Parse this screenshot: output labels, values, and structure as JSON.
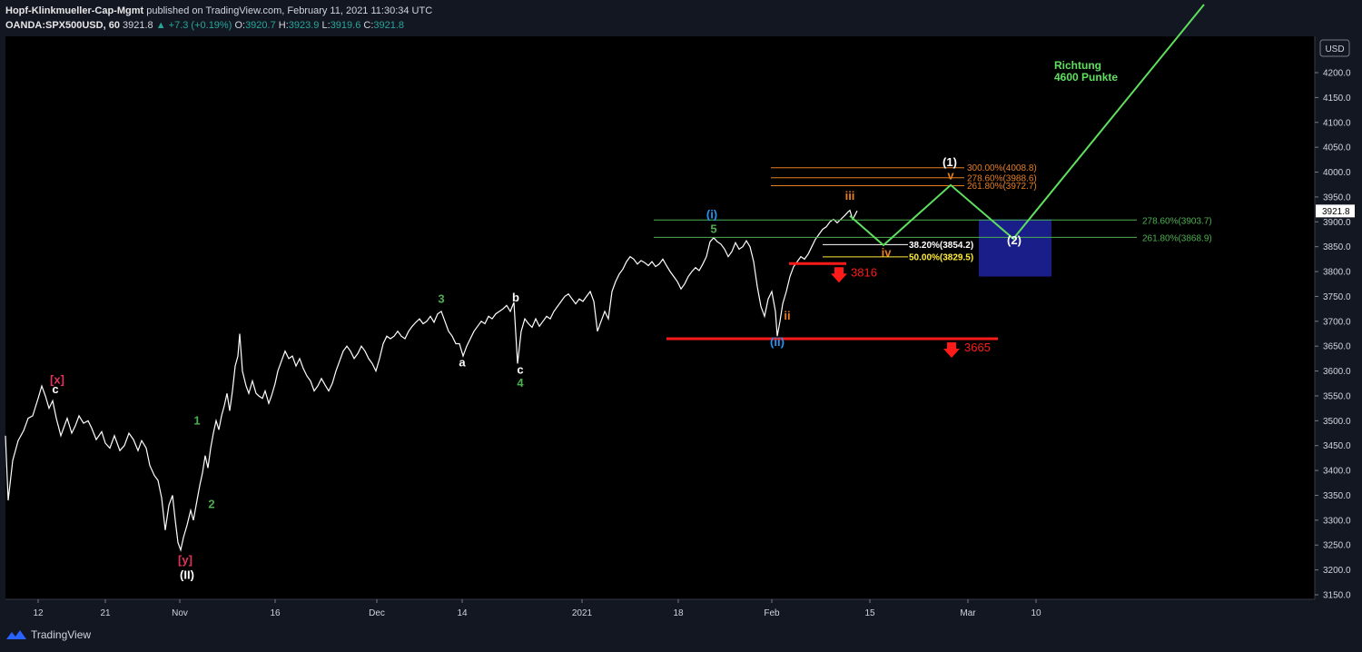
{
  "header": {
    "author": "Hopf-Klinkmueller-Cap-Mgmt",
    "published": "published on TradingView.com, February 11, 2021 11:30:34 UTC",
    "symbol": "OANDA:SPX500USD, 60",
    "last": "3921.8",
    "change": "▲ +7.3 (+0.19%)",
    "o_label": "O:",
    "o": "3920.7",
    "h_label": "H:",
    "h": "3923.9",
    "l_label": "L:",
    "l": "3919.6",
    "c_label": "C:",
    "c": "3921.8"
  },
  "footer": {
    "brand": "TradingView"
  },
  "chart_data": {
    "type": "line",
    "currency": "USD",
    "ylim": [
      3130,
      4330
    ],
    "y_ticks": [
      "4200.0",
      "4150.0",
      "4100.0",
      "4050.0",
      "4000.0",
      "3950.0",
      "3900.0",
      "3850.0",
      "3800.0",
      "3750.0",
      "3700.0",
      "3650.0",
      "3600.0",
      "3550.0",
      "3500.0",
      "3450.0",
      "3400.0",
      "3350.0",
      "3300.0",
      "3250.0",
      "3200.0",
      "3150.0"
    ],
    "x_ticks": [
      "12",
      "21",
      "Nov",
      "16",
      "Dec",
      "14",
      "2021",
      "18",
      "Feb",
      "15",
      "Mar",
      "10"
    ],
    "last_price_label": "3921.8",
    "price_path": [
      [
        0,
        3470
      ],
      [
        3,
        3340
      ],
      [
        8,
        3420
      ],
      [
        14,
        3460
      ],
      [
        20,
        3480
      ],
      [
        25,
        3505
      ],
      [
        30,
        3510
      ],
      [
        36,
        3545
      ],
      [
        40,
        3570
      ],
      [
        44,
        3550
      ],
      [
        48,
        3525
      ],
      [
        52,
        3540
      ],
      [
        56,
        3505
      ],
      [
        61,
        3470
      ],
      [
        64,
        3485
      ],
      [
        68,
        3505
      ],
      [
        73,
        3475
      ],
      [
        77,
        3490
      ],
      [
        81,
        3510
      ],
      [
        86,
        3495
      ],
      [
        91,
        3500
      ],
      [
        95,
        3485
      ],
      [
        100,
        3462
      ],
      [
        106,
        3478
      ],
      [
        110,
        3455
      ],
      [
        115,
        3445
      ],
      [
        120,
        3470
      ],
      [
        126,
        3440
      ],
      [
        131,
        3450
      ],
      [
        136,
        3475
      ],
      [
        141,
        3462
      ],
      [
        146,
        3440
      ],
      [
        150,
        3460
      ],
      [
        155,
        3445
      ],
      [
        159,
        3410
      ],
      [
        164,
        3390
      ],
      [
        168,
        3380
      ],
      [
        172,
        3345
      ],
      [
        176,
        3280
      ],
      [
        180,
        3330
      ],
      [
        184,
        3350
      ],
      [
        187,
        3300
      ],
      [
        190,
        3255
      ],
      [
        193,
        3240
      ],
      [
        196,
        3265
      ],
      [
        200,
        3290
      ],
      [
        204,
        3320
      ],
      [
        207,
        3300
      ],
      [
        210,
        3330
      ],
      [
        214,
        3370
      ],
      [
        217,
        3395
      ],
      [
        220,
        3430
      ],
      [
        223,
        3405
      ],
      [
        226,
        3445
      ],
      [
        229,
        3475
      ],
      [
        232,
        3500
      ],
      [
        235,
        3482
      ],
      [
        238,
        3510
      ],
      [
        241,
        3530
      ],
      [
        244,
        3555
      ],
      [
        247,
        3520
      ],
      [
        250,
        3560
      ],
      [
        253,
        3610
      ],
      [
        256,
        3630
      ],
      [
        258,
        3675
      ],
      [
        261,
        3600
      ],
      [
        265,
        3570
      ],
      [
        268,
        3555
      ],
      [
        272,
        3580
      ],
      [
        276,
        3555
      ],
      [
        279,
        3550
      ],
      [
        283,
        3545
      ],
      [
        286,
        3560
      ],
      [
        290,
        3535
      ],
      [
        293,
        3550
      ],
      [
        297,
        3575
      ],
      [
        300,
        3600
      ],
      [
        304,
        3620
      ],
      [
        308,
        3640
      ],
      [
        312,
        3625
      ],
      [
        316,
        3630
      ],
      [
        320,
        3610
      ],
      [
        324,
        3625
      ],
      [
        328,
        3605
      ],
      [
        332,
        3590
      ],
      [
        336,
        3580
      ],
      [
        340,
        3560
      ],
      [
        344,
        3570
      ],
      [
        348,
        3585
      ],
      [
        352,
        3572
      ],
      [
        356,
        3560
      ],
      [
        360,
        3575
      ],
      [
        364,
        3600
      ],
      [
        368,
        3620
      ],
      [
        372,
        3640
      ],
      [
        376,
        3650
      ],
      [
        380,
        3640
      ],
      [
        384,
        3625
      ],
      [
        388,
        3635
      ],
      [
        392,
        3650
      ],
      [
        396,
        3640
      ],
      [
        400,
        3625
      ],
      [
        404,
        3615
      ],
      [
        408,
        3600
      ],
      [
        412,
        3625
      ],
      [
        416,
        3655
      ],
      [
        420,
        3670
      ],
      [
        424,
        3665
      ],
      [
        428,
        3670
      ],
      [
        432,
        3680
      ],
      [
        436,
        3670
      ],
      [
        440,
        3665
      ],
      [
        444,
        3680
      ],
      [
        448,
        3690
      ],
      [
        452,
        3698
      ],
      [
        456,
        3705
      ],
      [
        460,
        3695
      ],
      [
        464,
        3700
      ],
      [
        468,
        3710
      ],
      [
        472,
        3698
      ],
      [
        476,
        3715
      ],
      [
        480,
        3720
      ],
      [
        484,
        3700
      ],
      [
        488,
        3680
      ],
      [
        492,
        3670
      ],
      [
        496,
        3655
      ],
      [
        500,
        3655
      ],
      [
        504,
        3630
      ],
      [
        508,
        3650
      ],
      [
        512,
        3665
      ],
      [
        516,
        3680
      ],
      [
        520,
        3690
      ],
      [
        524,
        3700
      ],
      [
        528,
        3695
      ],
      [
        532,
        3710
      ],
      [
        536,
        3705
      ],
      [
        540,
        3715
      ],
      [
        544,
        3720
      ],
      [
        548,
        3725
      ],
      [
        552,
        3732
      ],
      [
        556,
        3720
      ],
      [
        560,
        3738
      ],
      [
        564,
        3615
      ],
      [
        568,
        3680
      ],
      [
        572,
        3705
      ],
      [
        576,
        3695
      ],
      [
        580,
        3688
      ],
      [
        584,
        3705
      ],
      [
        588,
        3690
      ],
      [
        592,
        3700
      ],
      [
        596,
        3710
      ],
      [
        600,
        3705
      ],
      [
        604,
        3720
      ],
      [
        608,
        3730
      ],
      [
        612,
        3740
      ],
      [
        616,
        3750
      ],
      [
        620,
        3755
      ],
      [
        624,
        3745
      ],
      [
        628,
        3735
      ],
      [
        632,
        3745
      ],
      [
        636,
        3740
      ],
      [
        640,
        3750
      ],
      [
        644,
        3760
      ],
      [
        648,
        3740
      ],
      [
        652,
        3680
      ],
      [
        656,
        3700
      ],
      [
        660,
        3720
      ],
      [
        664,
        3705
      ],
      [
        668,
        3760
      ],
      [
        672,
        3780
      ],
      [
        676,
        3795
      ],
      [
        680,
        3805
      ],
      [
        684,
        3820
      ],
      [
        688,
        3830
      ],
      [
        692,
        3825
      ],
      [
        696,
        3815
      ],
      [
        700,
        3822
      ],
      [
        704,
        3818
      ],
      [
        708,
        3812
      ],
      [
        712,
        3820
      ],
      [
        716,
        3810
      ],
      [
        720,
        3815
      ],
      [
        724,
        3825
      ],
      [
        728,
        3812
      ],
      [
        732,
        3800
      ],
      [
        736,
        3790
      ],
      [
        740,
        3780
      ],
      [
        744,
        3765
      ],
      [
        748,
        3775
      ],
      [
        752,
        3790
      ],
      [
        756,
        3800
      ],
      [
        760,
        3808
      ],
      [
        764,
        3802
      ],
      [
        768,
        3815
      ],
      [
        772,
        3830
      ],
      [
        776,
        3860
      ],
      [
        780,
        3868
      ],
      [
        784,
        3860
      ],
      [
        788,
        3855
      ],
      [
        792,
        3845
      ],
      [
        796,
        3830
      ],
      [
        800,
        3840
      ],
      [
        804,
        3858
      ],
      [
        808,
        3845
      ],
      [
        812,
        3850
      ],
      [
        816,
        3862
      ],
      [
        820,
        3850
      ],
      [
        824,
        3820
      ],
      [
        828,
        3770
      ],
      [
        832,
        3730
      ],
      [
        836,
        3710
      ],
      [
        840,
        3745
      ],
      [
        844,
        3760
      ],
      [
        848,
        3720
      ],
      [
        850,
        3670
      ],
      [
        853,
        3700
      ],
      [
        856,
        3735
      ],
      [
        860,
        3760
      ],
      [
        864,
        3790
      ],
      [
        868,
        3810
      ],
      [
        872,
        3820
      ],
      [
        876,
        3830
      ],
      [
        880,
        3825
      ],
      [
        884,
        3835
      ],
      [
        888,
        3850
      ],
      [
        892,
        3865
      ],
      [
        896,
        3875
      ],
      [
        900,
        3885
      ],
      [
        904,
        3890
      ],
      [
        908,
        3900
      ],
      [
        912,
        3905
      ],
      [
        916,
        3898
      ],
      [
        920,
        3905
      ],
      [
        924,
        3912
      ],
      [
        928,
        3920
      ],
      [
        930,
        3923
      ],
      [
        933,
        3905
      ],
      [
        936,
        3915
      ],
      [
        938,
        3922
      ]
    ],
    "annotations": {
      "wave_labels": [
        {
          "text": "[x]",
          "x": 57,
          "price": 3575,
          "color": "#e0345b"
        },
        {
          "text": "c",
          "x": 55,
          "price": 3555,
          "color": "#ffffff"
        },
        {
          "text": "[y]",
          "x": 198,
          "price": 3212,
          "color": "#e0345b"
        },
        {
          "text": "(II)",
          "x": 200,
          "price": 3182,
          "color": "#ffffff"
        },
        {
          "text": "1",
          "x": 211,
          "price": 3492,
          "color": "#4caf50"
        },
        {
          "text": "2",
          "x": 227,
          "price": 3324,
          "color": "#4caf50"
        },
        {
          "text": "3",
          "x": 480,
          "price": 3737,
          "color": "#4caf50"
        },
        {
          "text": "b",
          "x": 562,
          "price": 3740,
          "color": "#ffffff"
        },
        {
          "text": "a",
          "x": 503,
          "price": 3609,
          "color": "#ffffff"
        },
        {
          "text": "c",
          "x": 567,
          "price": 3595,
          "color": "#ffffff"
        },
        {
          "text": "4",
          "x": 567,
          "price": 3568,
          "color": "#4caf50"
        },
        {
          "text": "(i)",
          "x": 778,
          "price": 3907,
          "color": "#2196f3"
        },
        {
          "text": "5",
          "x": 780,
          "price": 3878,
          "color": "#4caf50"
        },
        {
          "text": "(ii)",
          "x": 850,
          "price": 3650,
          "color": "#2196f3"
        },
        {
          "text": "ii",
          "x": 861,
          "price": 3703,
          "color": "#e67e22"
        },
        {
          "text": "iii",
          "x": 930,
          "price": 3944,
          "color": "#e67e22"
        },
        {
          "text": "iv",
          "x": 970,
          "price": 3830,
          "color": "#e67e22"
        },
        {
          "text": "v",
          "x": 1041,
          "price": 3985,
          "color": "#e67e22"
        },
        {
          "text": "(1)",
          "x": 1040,
          "price": 4012,
          "color": "#ffffff"
        },
        {
          "text": "(2)",
          "x": 1111,
          "price": 3855,
          "color": "#ffffff"
        }
      ],
      "projection_path": [
        [
          930,
          3912
        ],
        [
          967,
          3853
        ],
        [
          1041,
          3974
        ],
        [
          1110,
          3866
        ],
        [
          1320,
          4337
        ]
      ],
      "projection_label_1": "Richtung",
      "projection_label_2": "4600 Punkte",
      "fib_green": [
        {
          "label": "278.60%(3903.7)",
          "price": 3903.7
        },
        {
          "label": "261.80%(3868.9)",
          "price": 3868.9
        }
      ],
      "fib_orange": [
        {
          "label": "300.00%(4008.8)",
          "price": 4008.8
        },
        {
          "label": "278.60%(3988.6)",
          "price": 3988.6
        },
        {
          "label": "261.80%(3972.7)",
          "price": 3972.7
        }
      ],
      "fib_retrace": [
        {
          "label": "38.20%(3854.2)",
          "price": 3854.2,
          "color": "#ffffff"
        },
        {
          "label": "50.00%(3829.5)",
          "price": 3829.5,
          "color": "#ffeb3b"
        }
      ],
      "stop_levels": [
        {
          "label": "3816",
          "price": 3816
        },
        {
          "label": "3665",
          "price": 3665
        }
      ],
      "target_box": {
        "price_top": 3905,
        "price_bottom": 3790,
        "color": "#1e23a0"
      }
    }
  }
}
